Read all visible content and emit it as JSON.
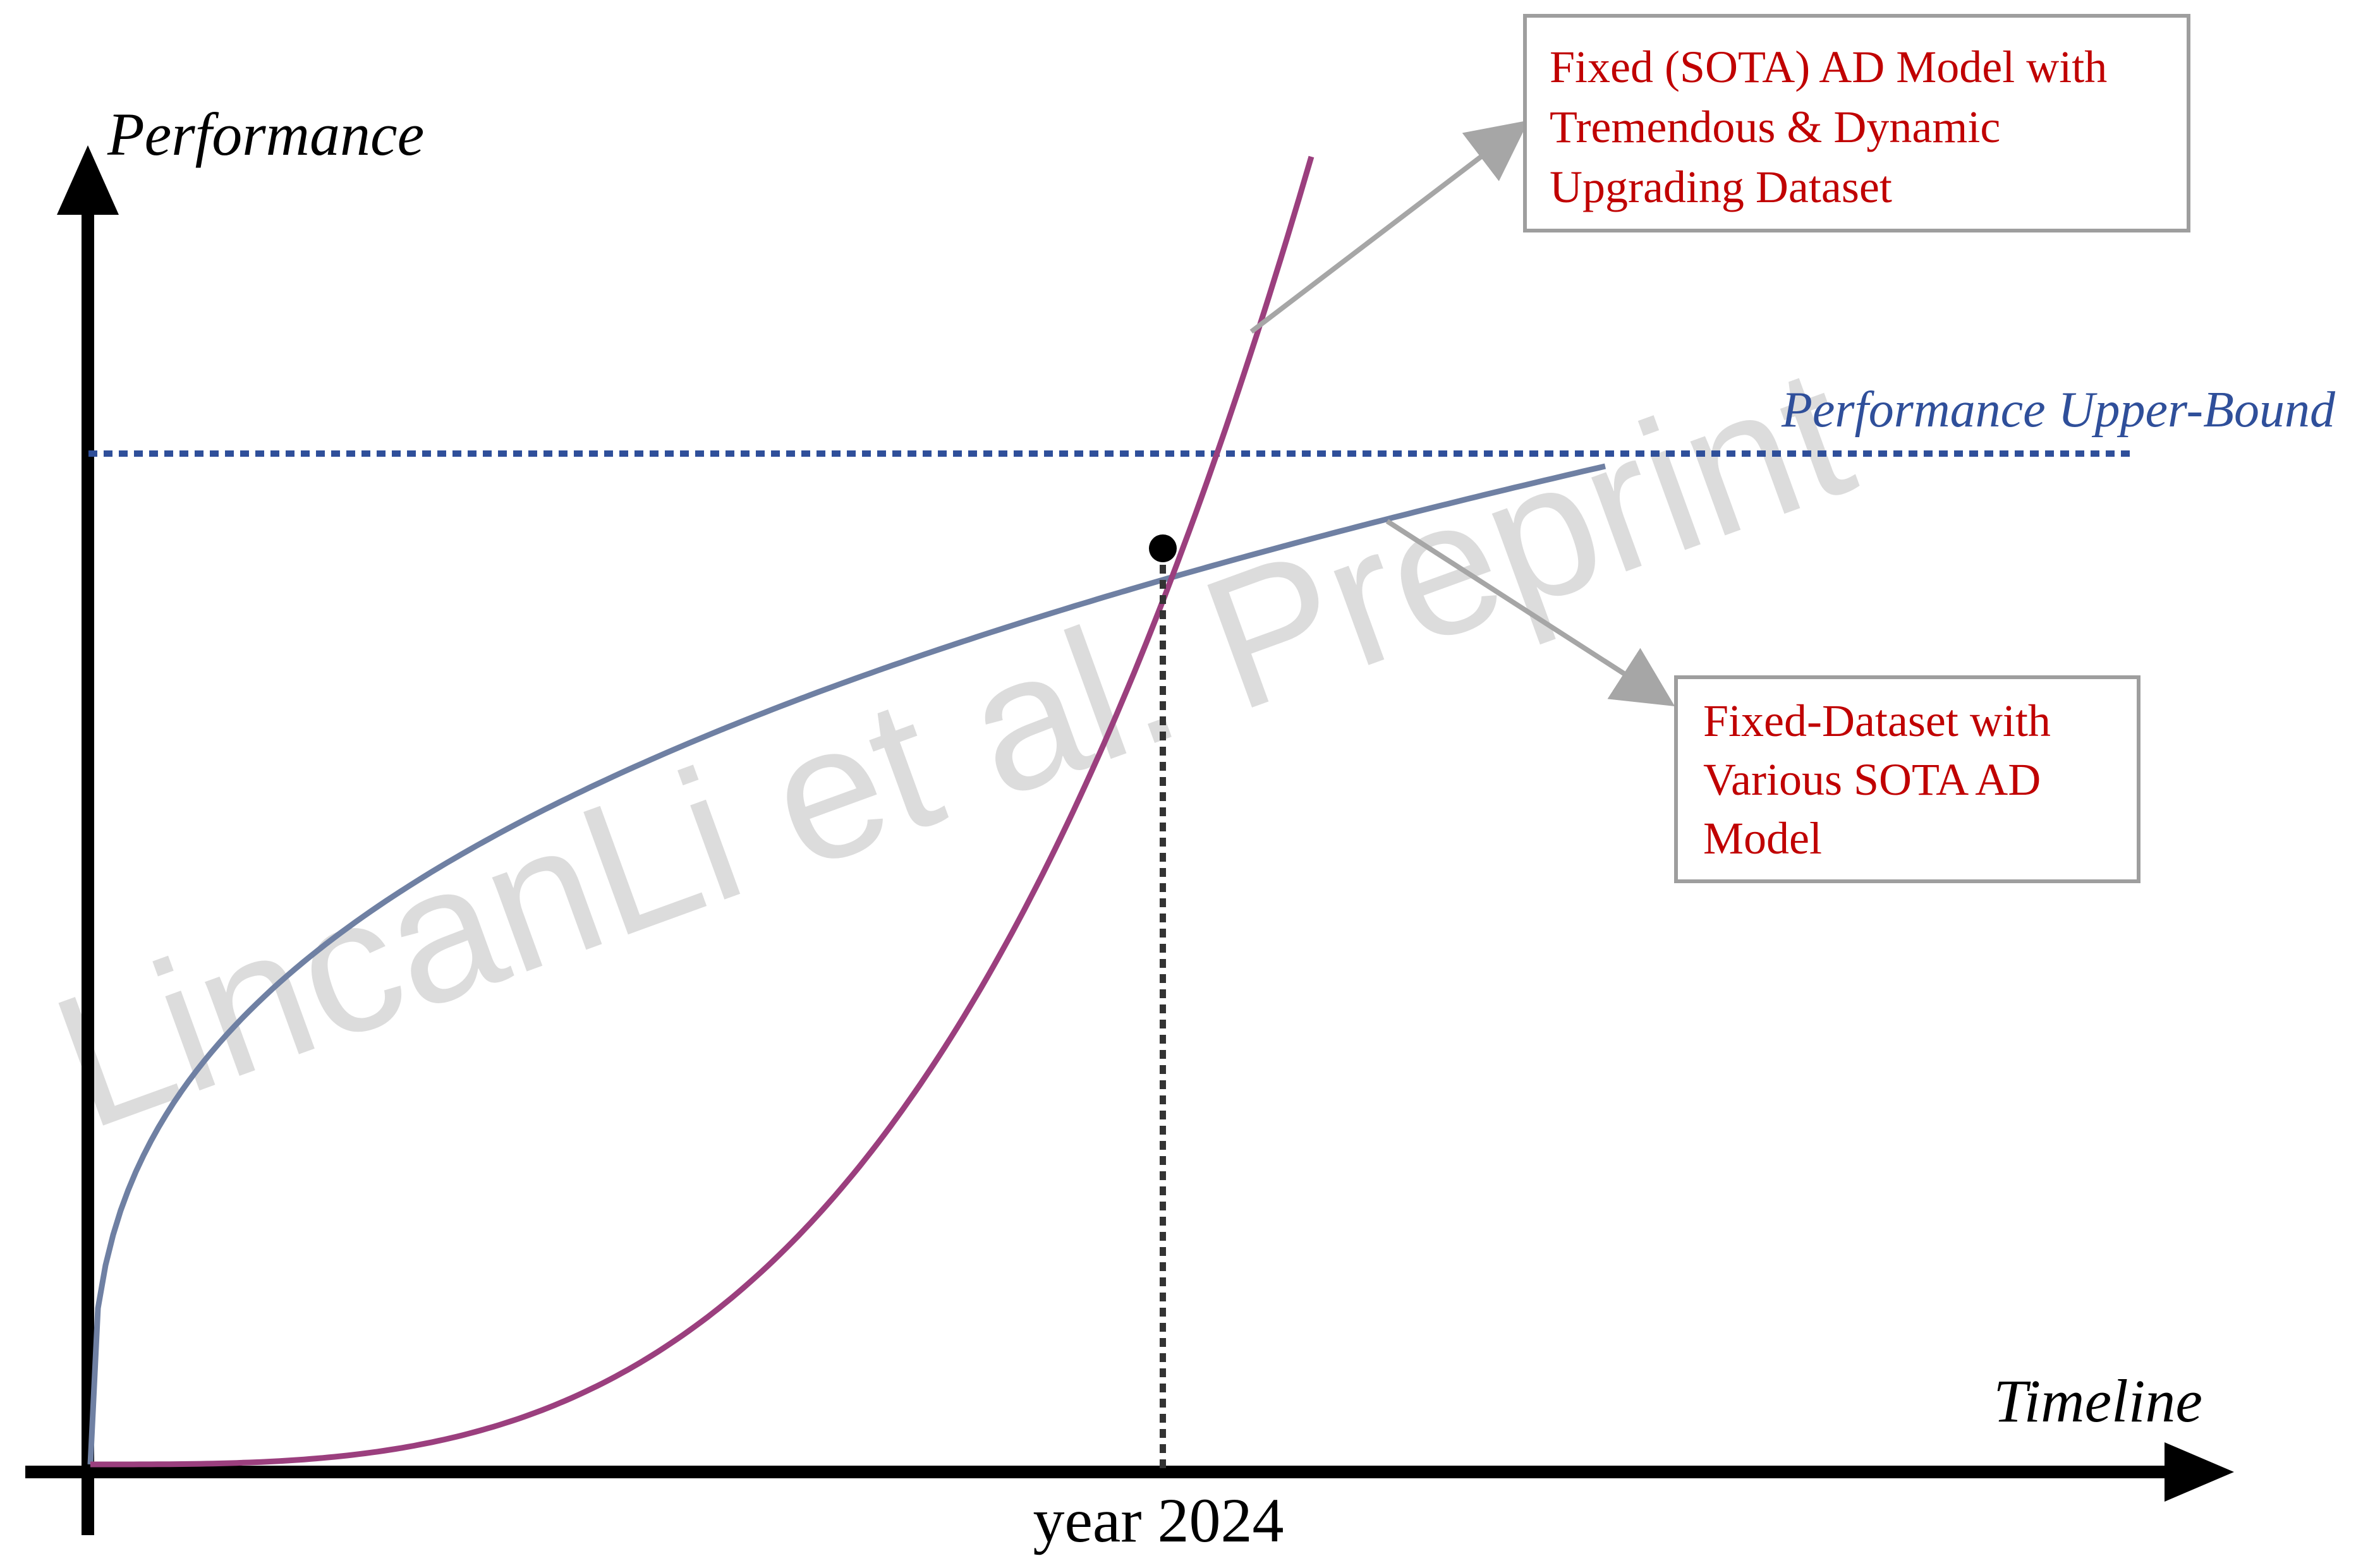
{
  "axes": {
    "y_label": "Performance",
    "x_label": "Timeline",
    "x_marker_label": "year 2024"
  },
  "upper_bound": {
    "label": "Performance Upper-Bound"
  },
  "callouts": {
    "top": {
      "lines": [
        "Fixed (SOTA) AD Model with",
        "Tremendous & Dynamic",
        "Upgrading Dataset"
      ]
    },
    "bottom": {
      "lines": [
        "Fixed-Dataset with",
        "Various SOTA AD",
        "Model"
      ]
    }
  },
  "watermark": "LincanLi et al. Preprint",
  "colors": {
    "axis": "#000000",
    "blue_curve": "#6f80a3",
    "magenta_curve": "#9b3f7e",
    "upper_bound": "#2f4f9a",
    "callout_text": "#c00000",
    "callout_border": "#9e9e9e",
    "arrow": "#a6a6a6",
    "watermark": "#dcdcdc",
    "dotted_vertical": "#333333",
    "dot": "#000000"
  }
}
